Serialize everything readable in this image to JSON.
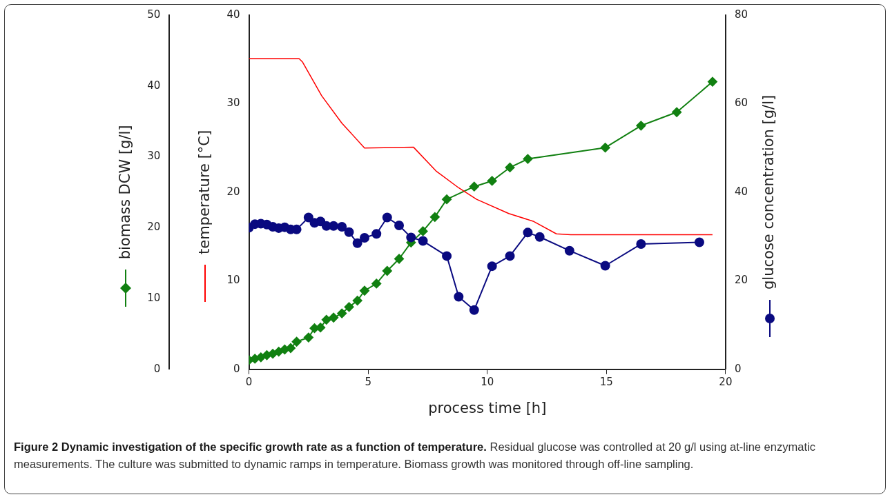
{
  "chart_data": {
    "type": "line",
    "title": "Figure 2 Dynamic investigation of the specific growth rate as a function of temperature.",
    "annotations": [
      "Residual glucose was controlled at 20 g/l using at-line enzymatic measurements. The culture was submitted to dynamic ramps in temperature. Biomass growth was monitored through off-line sampling."
    ],
    "xlabel": "process time [h]",
    "ylabel": "biomass DCW [g/l]",
    "y2label": "temperature [°C]",
    "y3label": "glucose concentration [g/l]",
    "xlim": [
      0,
      20
    ],
    "xticks": [
      0,
      5,
      10,
      15,
      20
    ],
    "ylim": [
      0,
      50
    ],
    "yticks": [
      0,
      10,
      20,
      30,
      40,
      50
    ],
    "y2lim": [
      0,
      40
    ],
    "y2ticks": [
      0,
      10,
      20,
      30,
      40
    ],
    "y3lim": [
      0,
      80
    ],
    "y3ticks": [
      0,
      20,
      40,
      60,
      80
    ],
    "series": [
      {
        "color": "#ff0000",
        "marker": "none",
        "axis": "y2",
        "x": [
          0,
          2.1,
          2.25,
          3.05,
          3.9,
          4.85,
          6.9,
          7.85,
          8.8,
          9.55,
          10.9,
          11.95,
          12.9,
          13.5,
          19.45
        ],
        "values": [
          35.1,
          35.1,
          34.7,
          30.9,
          27.8,
          25.0,
          25.1,
          22.4,
          20.5,
          19.2,
          17.6,
          16.7,
          15.3,
          15.2,
          15.2
        ]
      },
      {
        "color": "#0a0a80",
        "marker": "circle",
        "axis": "y3",
        "x": [
          0,
          0.25,
          0.5,
          0.75,
          1,
          1.25,
          1.5,
          1.75,
          2,
          2.5,
          2.75,
          3,
          3.25,
          3.55,
          3.9,
          4.2,
          4.55,
          4.85,
          5.35,
          5.8,
          6.3,
          6.8,
          7.3,
          8.3,
          8.8,
          9.45,
          10.2,
          10.95,
          11.7,
          12.2,
          13.45,
          14.95,
          16.45,
          18.9
        ],
        "values": [
          32.0,
          32.8,
          32.9,
          32.7,
          32.2,
          31.9,
          32.1,
          31.6,
          31.6,
          34.3,
          33.1,
          33.4,
          32.4,
          32.4,
          32.2,
          31.0,
          28.5,
          29.7,
          30.6,
          34.3,
          32.5,
          29.8,
          29.0,
          25.6,
          16.4,
          13.4,
          23.3,
          25.6,
          30.9,
          29.9,
          26.8,
          23.4,
          28.3,
          28.7
        ]
      },
      {
        "color": "#118011",
        "marker": "diamond",
        "axis": "y",
        "x": [
          0,
          0.25,
          0.5,
          0.75,
          1,
          1.25,
          1.5,
          1.75,
          2,
          2.5,
          2.75,
          3,
          3.25,
          3.55,
          3.9,
          4.2,
          4.55,
          4.85,
          5.35,
          5.8,
          6.3,
          6.8,
          7.3,
          7.8,
          8.3,
          9.45,
          10.2,
          10.95,
          11.7,
          14.95,
          16.45,
          17.95,
          19.45
        ],
        "values": [
          1.3,
          1.5,
          1.7,
          2.0,
          2.2,
          2.5,
          2.8,
          3.0,
          3.9,
          4.5,
          5.8,
          5.9,
          7.0,
          7.3,
          7.9,
          8.8,
          9.7,
          11.1,
          12.1,
          13.9,
          15.6,
          17.9,
          19.5,
          21.5,
          24.0,
          25.8,
          26.6,
          28.5,
          29.7,
          31.3,
          34.4,
          36.3,
          40.6
        ]
      }
    ]
  }
}
